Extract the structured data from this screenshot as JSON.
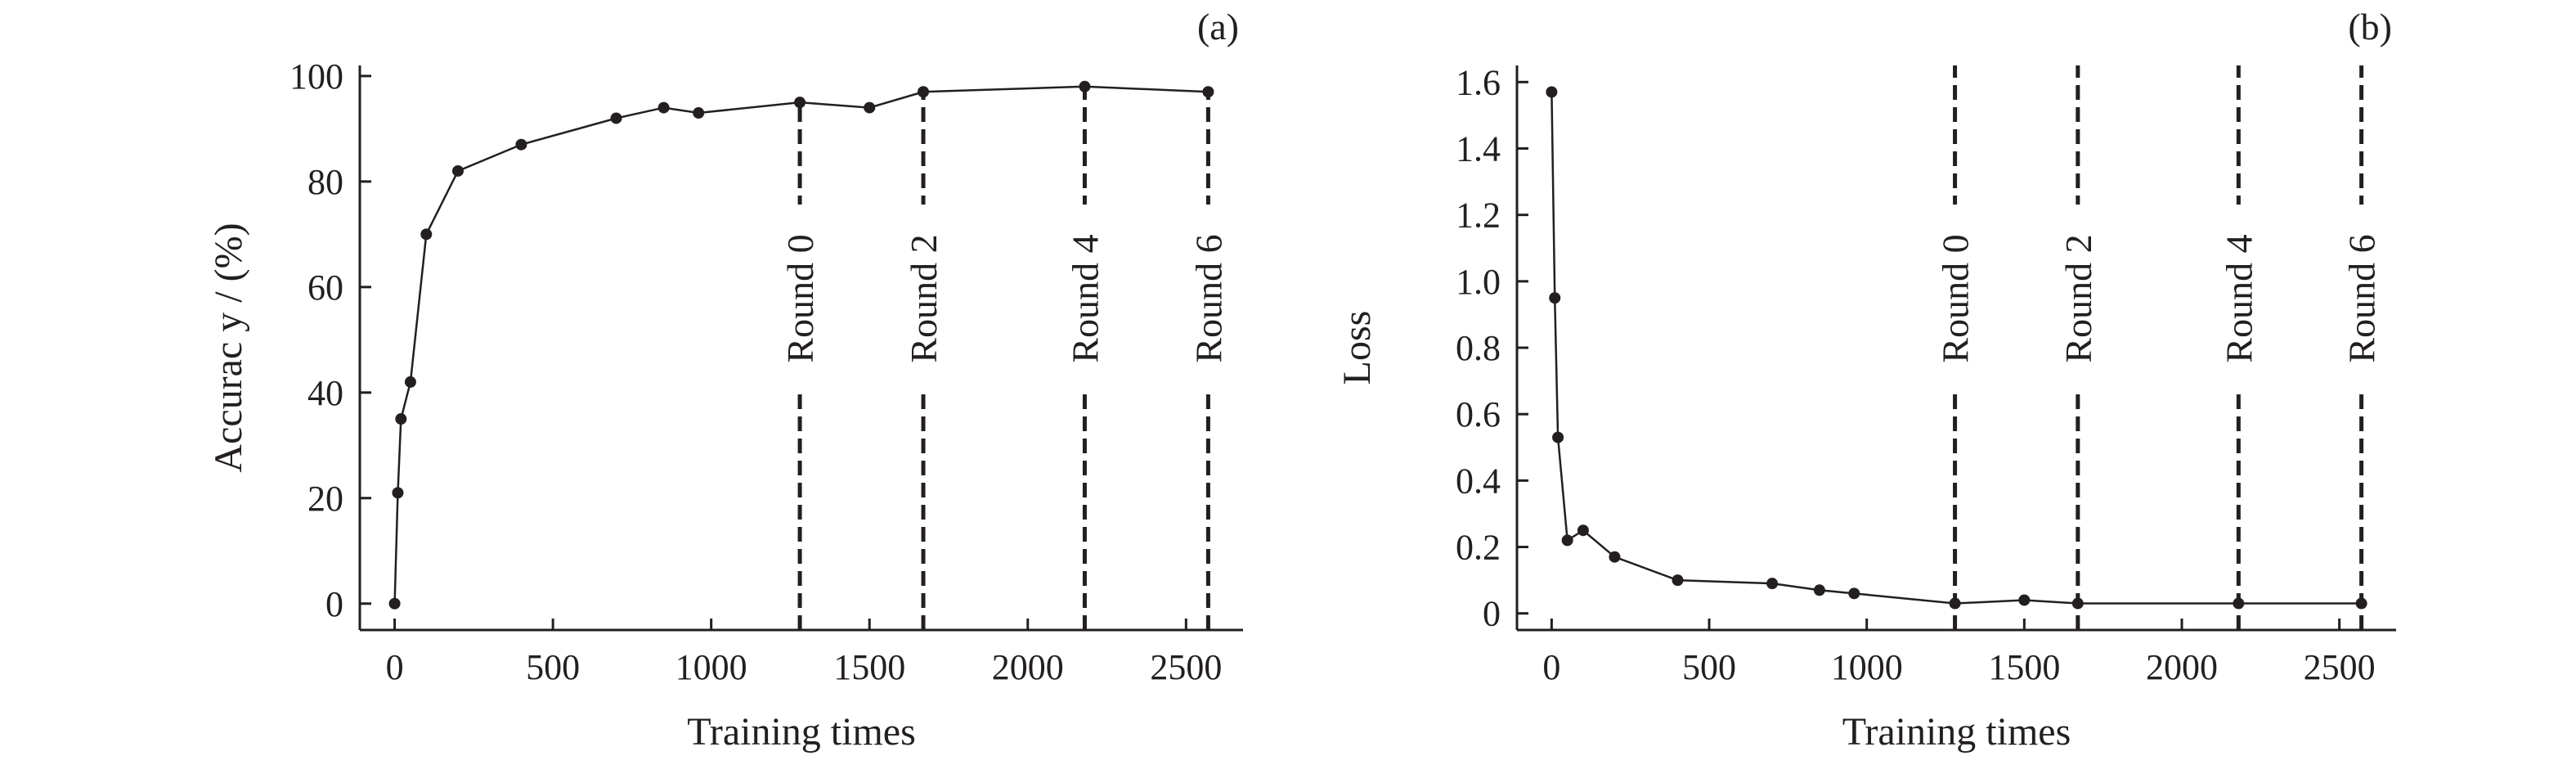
{
  "chart_data": [
    {
      "panel_label": "(a)",
      "type": "line",
      "xlabel": "Training times",
      "ylabel": "Accurac y / (%)",
      "xlim": [
        -110,
        2680
      ],
      "ylim": [
        -5,
        102
      ],
      "xticks": [
        0,
        500,
        1000,
        1500,
        2000,
        2500
      ],
      "yticks": [
        0,
        20,
        40,
        60,
        80,
        100
      ],
      "xtick_labels": [
        "0",
        "500",
        "1000",
        "1500",
        "2000",
        "2500"
      ],
      "ytick_labels": [
        "0",
        "20",
        "40",
        "60",
        "80",
        100
      ],
      "grid": false,
      "series": [
        {
          "x": [
            0,
            10,
            20,
            50,
            100,
            200,
            400,
            700,
            850,
            960,
            1280,
            1500,
            1670,
            2180,
            2570
          ],
          "y": [
            0,
            21,
            35,
            42,
            70,
            82,
            87,
            92,
            94,
            93,
            95,
            94,
            97,
            98,
            97
          ]
        }
      ],
      "markers": [
        {
          "x": 1280,
          "label": "Round 0"
        },
        {
          "x": 1670,
          "label": "Round 2"
        },
        {
          "x": 2180,
          "label": "Round 4"
        },
        {
          "x": 2570,
          "label": "Round 6"
        }
      ]
    },
    {
      "panel_label": "(b)",
      "type": "line",
      "xlabel": "Training times",
      "ylabel": "Loss",
      "xlim": [
        -110,
        2680
      ],
      "ylim": [
        -0.05,
        1.65
      ],
      "xticks": [
        0,
        500,
        1000,
        1500,
        2000,
        2500
      ],
      "yticks": [
        0,
        0.2,
        0.4,
        0.6,
        0.8,
        1.0,
        1.2,
        1.4,
        1.6
      ],
      "xtick_labels": [
        "0",
        "500",
        "1000",
        "1500",
        "2000",
        "2500"
      ],
      "ytick_labels": [
        "0",
        "0.2",
        "0.4",
        "0.6",
        "0.8",
        "1.0",
        "1.2",
        "1.4",
        "1.6"
      ],
      "grid": false,
      "series": [
        {
          "x": [
            0,
            10,
            20,
            50,
            100,
            200,
            400,
            700,
            850,
            960,
            1280,
            1500,
            1670,
            2180,
            2570
          ],
          "y": [
            1.57,
            0.95,
            0.53,
            0.22,
            0.25,
            0.17,
            0.1,
            0.09,
            0.07,
            0.06,
            0.03,
            0.04,
            0.03,
            0.03,
            0.03
          ]
        }
      ],
      "markers": [
        {
          "x": 1280,
          "label": "Round 0"
        },
        {
          "x": 1670,
          "label": "Round 2"
        },
        {
          "x": 2180,
          "label": "Round 4"
        },
        {
          "x": 2570,
          "label": "Round 6"
        }
      ]
    }
  ]
}
